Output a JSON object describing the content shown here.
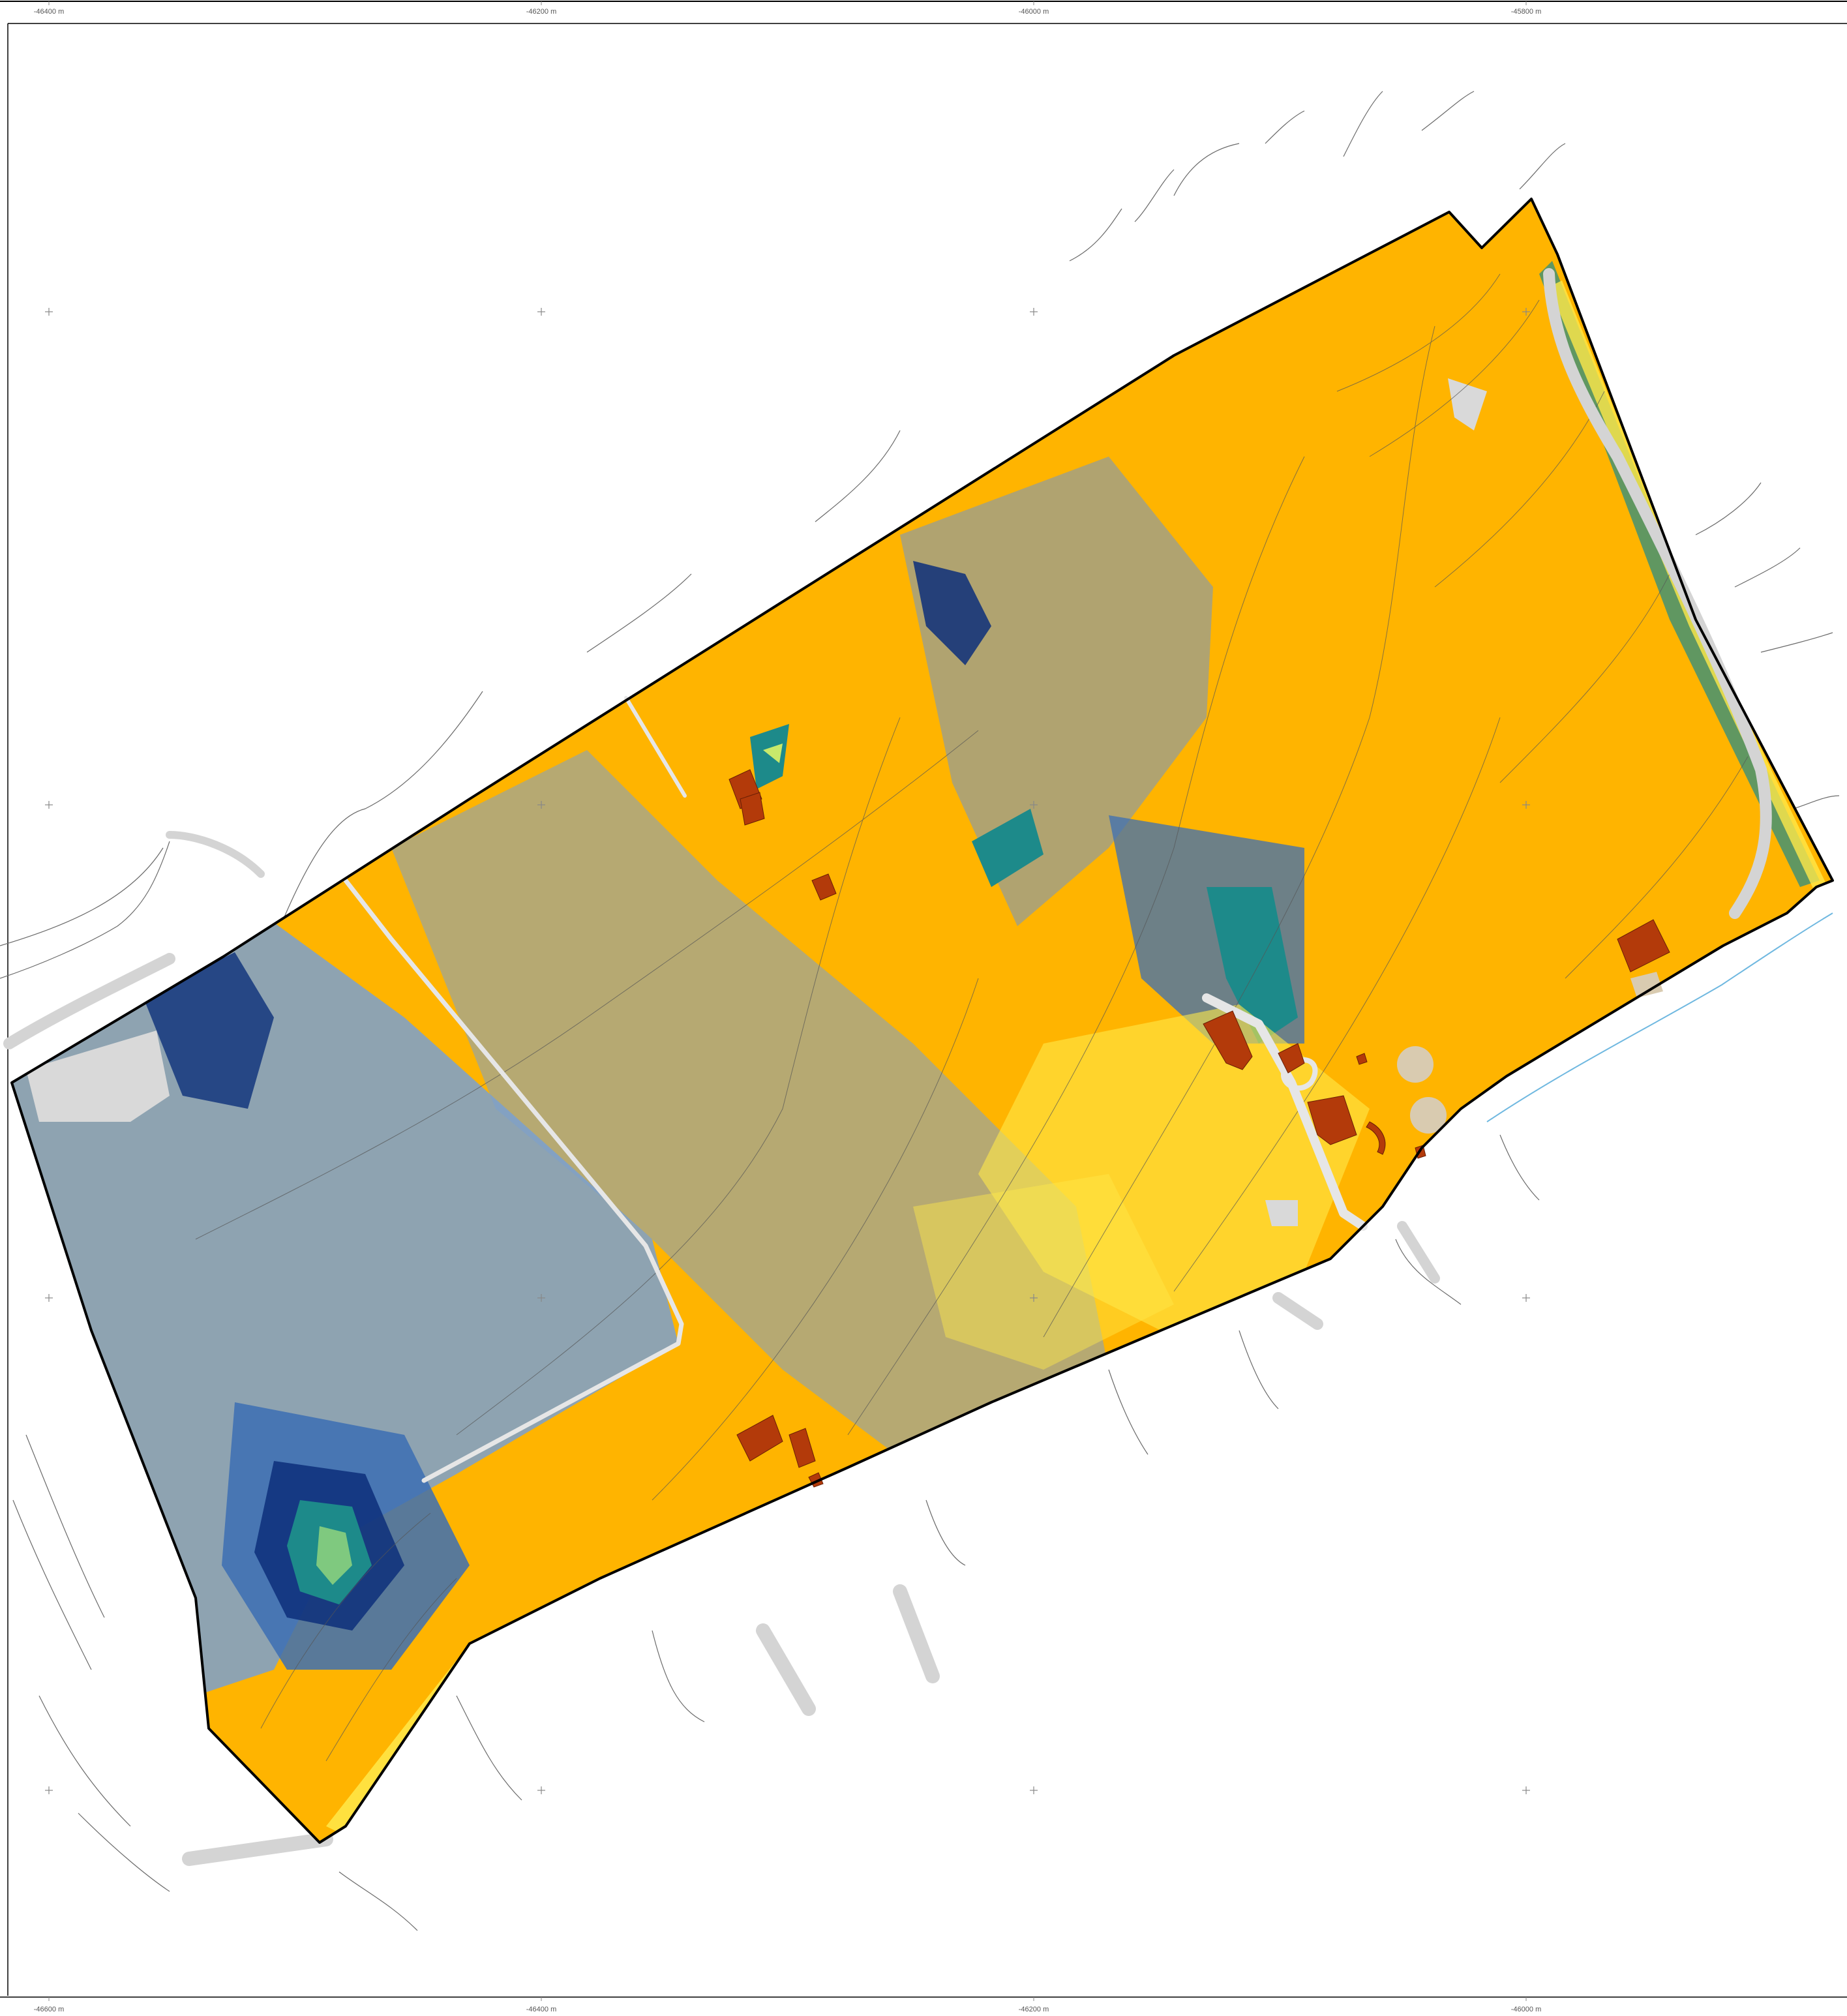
{
  "map": {
    "grid_labels_top": [
      "-46400 m",
      "-46200 m",
      "-46000 m",
      "-45800 m"
    ],
    "grid_labels_bottom": [
      "-46600 m",
      "-46400 m",
      "-46200 m",
      "-46000 m"
    ],
    "colors": {
      "high": "#ffb400",
      "mid": "#f4c430",
      "bright": "#ffe94a",
      "low": "#7aa0d0",
      "lower": "#3c6fb4",
      "lowest": "#0d2f7a",
      "teal": "#1d8a8a",
      "green": "#7fc97f",
      "building": "#b33a0a",
      "tank": "#d9cbb0",
      "road": "#d4d4d4",
      "contour": "#6b6b6b",
      "boundary": "#000000",
      "stream": "#6fb8e0"
    },
    "layers": [
      "raster-surface",
      "contour-lines",
      "roads",
      "buildings",
      "tanks",
      "site-boundary",
      "grid-crosses"
    ]
  }
}
